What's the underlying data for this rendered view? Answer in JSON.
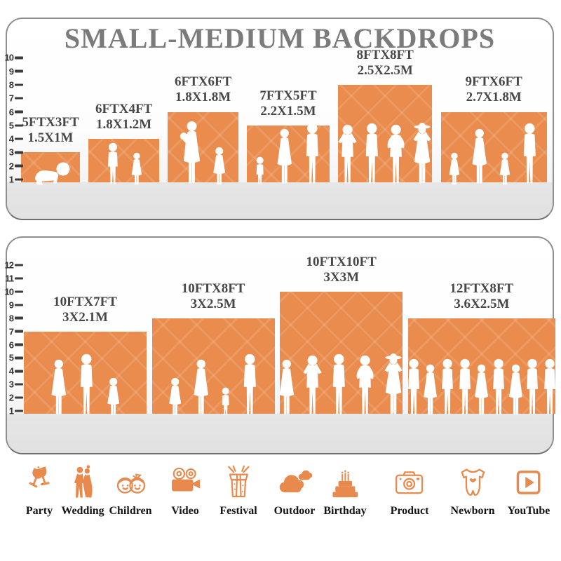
{
  "title": "SMALL-MEDIUM BACKDROPS",
  "colors": {
    "backdrop_orange": "#E98C4D",
    "icon_orange": "#E8894D",
    "title_gray": "#7b7b7b",
    "label_gray": "#474747",
    "ruler_tick": "#3c3c3c",
    "floor_gray": "#e4e4e4",
    "panel_border": "#8e8e8e",
    "silhouette": "#ffffff"
  },
  "panels": [
    {
      "name": "small-medium-backdrops",
      "ruler_max": 10,
      "backdrops": [
        {
          "size_ft": "5FTX3FT",
          "size_m": "1.5X1M",
          "w_ft": 5,
          "h_ft": 3,
          "people": [
            "crawling-baby"
          ]
        },
        {
          "size_ft": "6FTX4FT",
          "size_m": "1.8X1.2M",
          "w_ft": 6,
          "h_ft": 4,
          "people": [
            "boy",
            "girl"
          ]
        },
        {
          "size_ft": "6FTX6FT",
          "size_m": "1.8X1.8M",
          "w_ft": 6,
          "h_ft": 6,
          "people": [
            "mother-holding-baby",
            "little-girl"
          ]
        },
        {
          "size_ft": "7FTX5FT",
          "size_m": "2.2X1.5M",
          "w_ft": 7,
          "h_ft": 5,
          "people": [
            "toddler",
            "woman",
            "man"
          ]
        },
        {
          "size_ft": "8FTX8FT",
          "size_m": "2.5X2.5M",
          "w_ft": 8,
          "h_ft": 8,
          "people": [
            "man-arms-up",
            "man",
            "man-hands-on-hips",
            "woman-sunhat"
          ]
        },
        {
          "size_ft": "9FTX6FT",
          "size_m": "2.7X1.8M",
          "w_ft": 9,
          "h_ft": 6,
          "people": [
            "girl",
            "woman",
            "girl",
            "man"
          ]
        }
      ]
    },
    {
      "name": "large-backdrops",
      "ruler_max": 12,
      "backdrops": [
        {
          "size_ft": "10FTX7FT",
          "size_m": "3X2.1M",
          "w_ft": 10,
          "h_ft": 7,
          "people": [
            "woman",
            "man",
            "little-girl"
          ]
        },
        {
          "size_ft": "10FTX8FT",
          "size_m": "3X2.5M",
          "w_ft": 10,
          "h_ft": 8,
          "people": [
            "little-girl",
            "woman",
            "toddler",
            "man"
          ]
        },
        {
          "size_ft": "10FTX10FT",
          "size_m": "3X3M",
          "w_ft": 10,
          "h_ft": 10,
          "people": [
            "woman",
            "man-arms-up",
            "man",
            "man-hands-on-hips",
            "woman-sunhat"
          ]
        },
        {
          "size_ft": "12FTX8FT",
          "size_m": "3.6X2.5M",
          "w_ft": 12,
          "h_ft": 8,
          "people": [
            "man",
            "woman",
            "man",
            "man",
            "woman",
            "man",
            "woman",
            "man",
            "man"
          ]
        }
      ]
    }
  ],
  "categories": [
    {
      "label": "Party",
      "icon": "party-icon"
    },
    {
      "label": "Wedding",
      "icon": "wedding-icon"
    },
    {
      "label": "Children",
      "icon": "children-icon"
    },
    {
      "label": "Video",
      "icon": "video-icon"
    },
    {
      "label": "Festival",
      "icon": "festival-icon"
    },
    {
      "label": "Outdoor",
      "icon": "outdoor-icon"
    },
    {
      "label": "Birthday",
      "icon": "birthday-icon"
    },
    {
      "label": "Product",
      "icon": "product-icon"
    },
    {
      "label": "Newborn",
      "icon": "newborn-icon"
    },
    {
      "label": "YouTube",
      "icon": "youtube-icon"
    }
  ]
}
